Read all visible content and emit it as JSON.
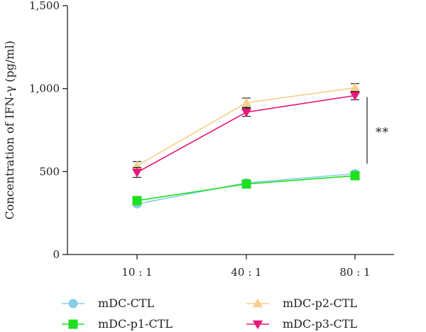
{
  "chart_data": {
    "type": "line",
    "title": "",
    "xlabel": "",
    "ylabel": "Concentration of IFN-γ (pg/ml)",
    "categories": [
      "10 : 1",
      "40 : 1",
      "80 : 1"
    ],
    "ylim": [
      0,
      1500
    ],
    "yticks": [
      0,
      500,
      1000,
      1500
    ],
    "ytick_labels": [
      "0",
      "500",
      "1,000",
      "1,500"
    ],
    "grid": false,
    "legend_position": "bottom",
    "series": [
      {
        "name": "mDC-CTL",
        "values": [
          305,
          432,
          487
        ],
        "errors": [
          8,
          8,
          8
        ],
        "color": "#87CEEB",
        "marker": "circle"
      },
      {
        "name": "mDC-p1-CTL",
        "values": [
          325,
          425,
          475
        ],
        "errors": [
          10,
          10,
          10
        ],
        "color": "#1FE01F",
        "marker": "square"
      },
      {
        "name": "mDC-p2-CTL",
        "values": [
          535,
          915,
          1005
        ],
        "errors": [
          25,
          28,
          25
        ],
        "color": "#F5D08A",
        "marker": "triangle-up"
      },
      {
        "name": "mDC-p3-CTL",
        "values": [
          495,
          858,
          958
        ],
        "errors": [
          30,
          25,
          25
        ],
        "color": "#E8197A",
        "marker": "triangle-down"
      }
    ],
    "annotations": [
      {
        "text": "**",
        "bracket_from": 530,
        "bracket_to": 915,
        "category_after": "80 : 1"
      }
    ]
  }
}
